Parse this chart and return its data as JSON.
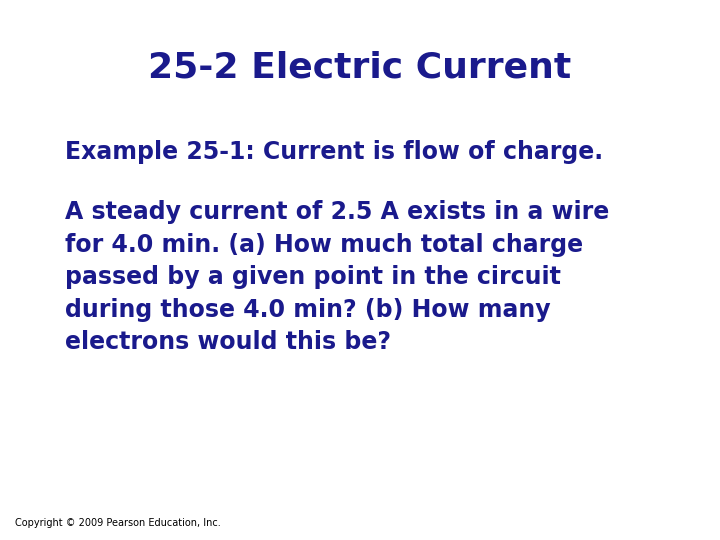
{
  "title": "25-2 Electric Current",
  "title_color": "#1a1a8c",
  "title_fontsize": 26,
  "title_bold": true,
  "example_line": "Example 25-1: Current is flow of charge.",
  "body_text": "A steady current of 2.5 A exists in a wire\nfor 4.0 min. (a) How much total charge\npassed by a given point in the circuit\nduring those 4.0 min? (b) How many\nelectrons would this be?",
  "text_color": "#1a1a8c",
  "text_fontsize": 17,
  "text_bold": true,
  "copyright_text": "Copyright © 2009 Pearson Education, Inc.",
  "copyright_fontsize": 7,
  "background_color": "#ffffff"
}
